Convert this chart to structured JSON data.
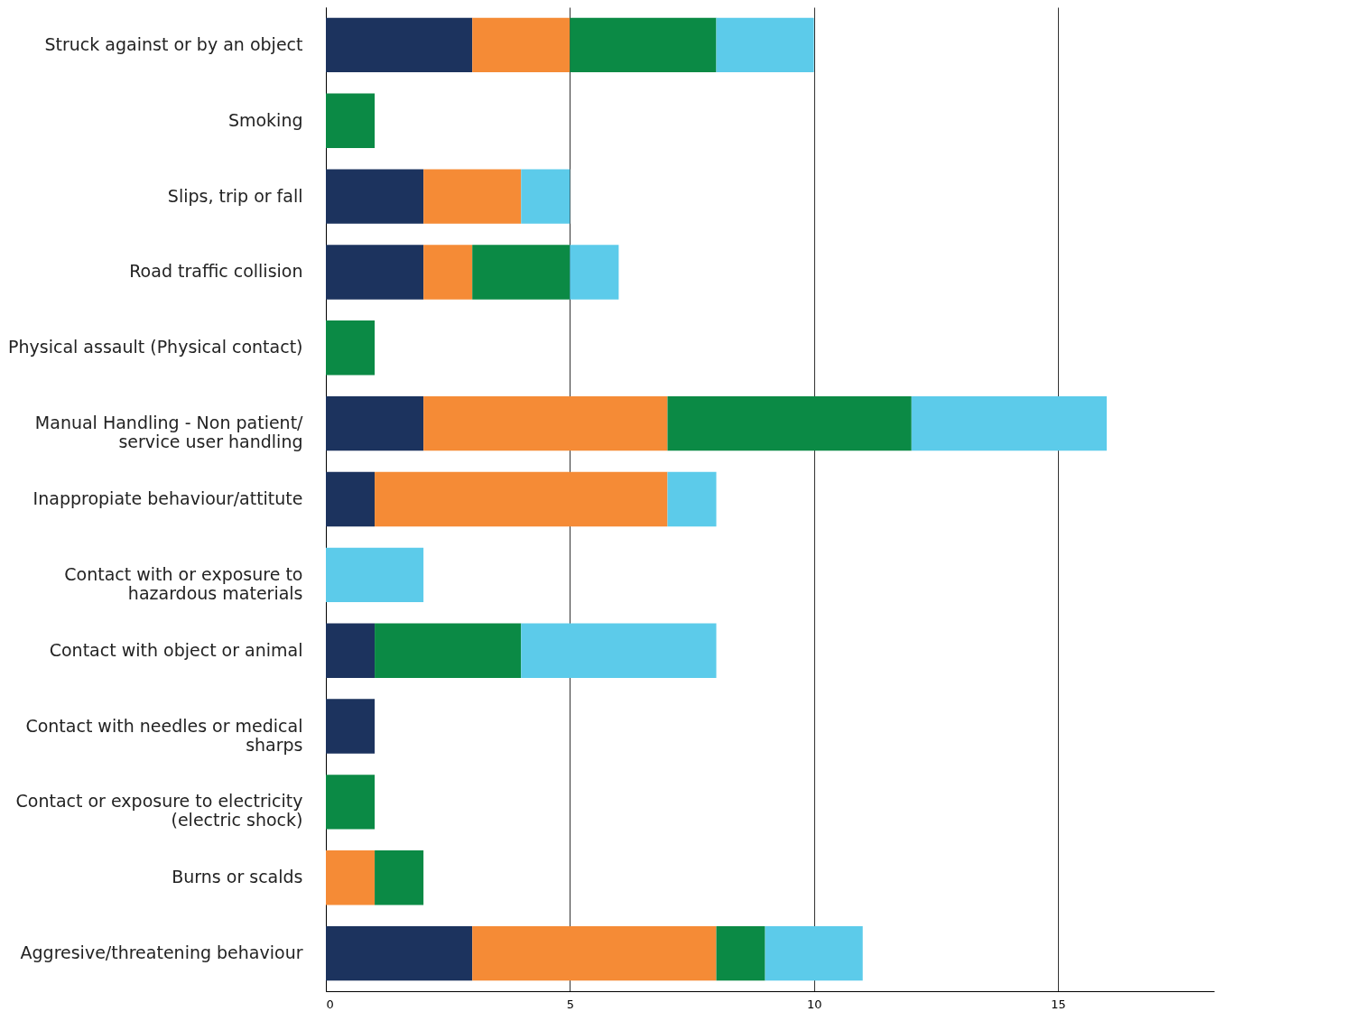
{
  "chart_data": {
    "type": "bar",
    "orientation": "horizontal",
    "stacked": true,
    "grid": "x",
    "legend": false,
    "categories": [
      "Struck against or by an object",
      "Smoking",
      "Slips, trip or fall",
      "Road traffic collision",
      "Physical assault (Physical contact)",
      "Manual Handling - Non patient/ service user handling",
      "Inappropiate behaviour/attitute",
      "Contact with or exposure to hazardous materials",
      "Contact with object or animal",
      "Contact with needles or medical sharps",
      "Contact or exposure to electricity (electric shock)",
      "Burns or scalds",
      "Aggresive/threatening behaviour"
    ],
    "series": [
      {
        "color": "#1c335e",
        "values": [
          3,
          null,
          2,
          2,
          null,
          2,
          1,
          null,
          1,
          1,
          null,
          null,
          3
        ]
      },
      {
        "color": "#f58b36",
        "values": [
          2,
          null,
          2,
          1,
          null,
          5,
          6,
          null,
          null,
          null,
          null,
          1,
          5
        ]
      },
      {
        "color": "#0b8a45",
        "values": [
          3,
          1,
          null,
          2,
          1,
          5,
          null,
          null,
          3,
          null,
          1,
          1,
          1
        ]
      },
      {
        "color": "#5ccbea",
        "values": [
          2,
          null,
          1,
          1,
          null,
          4,
          1,
          2,
          4,
          null,
          null,
          null,
          2
        ]
      }
    ],
    "xlim": [
      0,
      18.2
    ],
    "xticks": [
      0,
      5,
      10,
      15
    ]
  }
}
